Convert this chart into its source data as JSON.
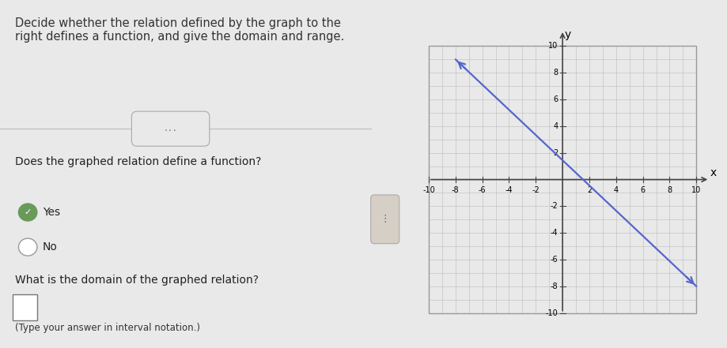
{
  "title_text": "Decide whether the relation defined by the graph to the\nright defines a function, and give the domain and range.",
  "question1": "Does the graphed relation define a function?",
  "answer_yes": "Yes",
  "answer_no": "No",
  "question2": "What is the domain of the graphed relation?",
  "hint": "(Type your answer in interval notation.)",
  "separator_dots": "...",
  "line_x": [
    -8,
    10
  ],
  "line_y": [
    9,
    -8
  ],
  "line_color": "#5566cc",
  "line_width": 1.6,
  "grid_color": "#bbbbbb",
  "grid_lw": 0.4,
  "axis_color": "#444444",
  "axis_lw": 1.2,
  "bg_left": "#e9e9e9",
  "bg_right": "#d6cfc6",
  "bg_graph": "#d6cfc6",
  "divider_color": "#bbbbbb",
  "xmin": -10,
  "xmax": 10,
  "ymin": -10,
  "ymax": 10,
  "tick_step": 2,
  "xlabel": "x",
  "ylabel": "y",
  "tick_fontsize": 7,
  "label_fontsize": 10,
  "text_fontsize": 10,
  "title_fontsize": 10.5
}
